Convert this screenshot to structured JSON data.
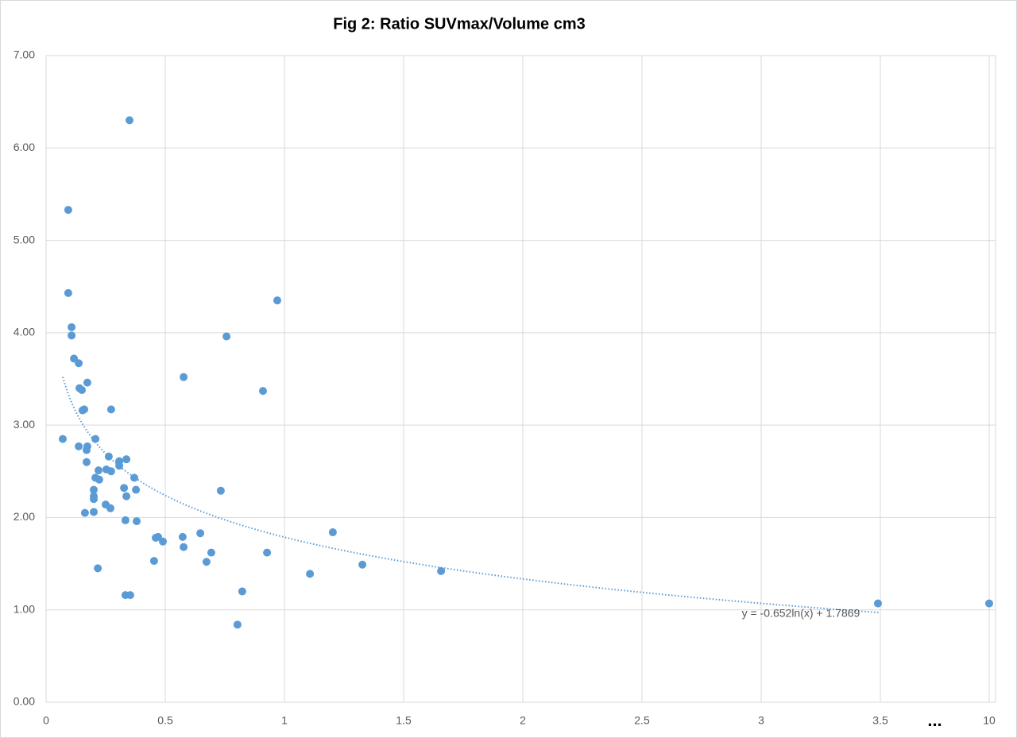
{
  "chart_data": {
    "type": "scatter",
    "title": "Fig 2: Ratio SUVmax/Volume cm3",
    "xlim": [
      0,
      10
    ],
    "ylim": [
      0,
      7
    ],
    "xticks": [
      0,
      0.5,
      1,
      1.5,
      2,
      2.5,
      3,
      3.5,
      10
    ],
    "yticks": [
      {
        "value": 0,
        "label": "0.00"
      },
      {
        "value": 1,
        "label": "1.00"
      },
      {
        "value": 2,
        "label": "2.00"
      },
      {
        "value": 3,
        "label": "3.00"
      },
      {
        "value": 4,
        "label": "4.00"
      },
      {
        "value": 5,
        "label": "5.00"
      },
      {
        "value": 6,
        "label": "6.00"
      },
      {
        "value": 7,
        "label": "7.00"
      }
    ],
    "x_break": {
      "after": 3.5,
      "label": "..."
    },
    "grid": true,
    "series": [
      {
        "color": "#5b9bd5",
        "x": [
          0.35,
          0.093,
          0.093,
          0.107,
          0.107,
          0.97,
          0.757,
          0.117,
          0.137,
          0.173,
          0.577,
          0.14,
          0.15,
          0.91,
          0.153,
          0.16,
          0.273,
          0.07,
          0.207,
          0.137,
          0.173,
          0.17,
          0.263,
          0.337,
          0.307,
          0.17,
          0.307,
          0.22,
          0.253,
          0.273,
          0.207,
          0.223,
          0.37,
          0.327,
          0.2,
          0.377,
          0.733,
          0.2,
          0.337,
          0.2,
          0.25,
          0.27,
          0.163,
          0.2,
          0.333,
          0.38,
          1.203,
          0.647,
          0.46,
          0.47,
          0.573,
          0.49,
          0.577,
          0.693,
          0.927,
          0.453,
          0.673,
          1.327,
          0.217,
          1.657,
          1.107,
          0.823,
          0.333,
          0.353,
          3.49,
          10,
          0.803
        ],
        "values": [
          6.3,
          5.33,
          4.43,
          4.06,
          3.97,
          4.35,
          3.96,
          3.72,
          3.67,
          3.46,
          3.52,
          3.4,
          3.38,
          3.37,
          3.16,
          3.17,
          3.17,
          2.85,
          2.85,
          2.77,
          2.77,
          2.73,
          2.66,
          2.63,
          2.61,
          2.6,
          2.56,
          2.51,
          2.52,
          2.5,
          2.43,
          2.41,
          2.43,
          2.32,
          2.3,
          2.3,
          2.29,
          2.23,
          2.23,
          2.2,
          2.14,
          2.1,
          2.05,
          2.06,
          1.97,
          1.96,
          1.84,
          1.83,
          1.78,
          1.79,
          1.79,
          1.74,
          1.68,
          1.62,
          1.62,
          1.53,
          1.52,
          1.49,
          1.45,
          1.42,
          1.39,
          1.2,
          1.16,
          1.16,
          1.07,
          1.07,
          0.84
        ]
      }
    ],
    "trendline": {
      "label": "y = -0.652ln(x) + 1.7869",
      "a": -0.652,
      "b": 1.7869,
      "color": "#5b9bd5"
    }
  }
}
